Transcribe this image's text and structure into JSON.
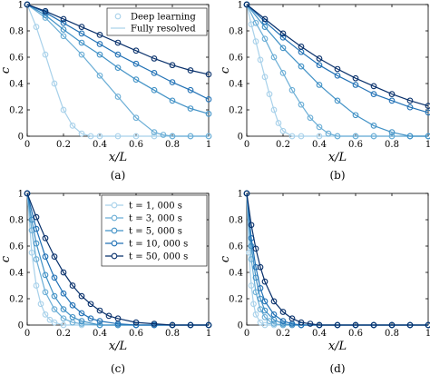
{
  "figure": {
    "panel_captions": [
      "(a)",
      "(b)",
      "(c)",
      "(d)"
    ]
  },
  "chart_data": [
    {
      "type": "line",
      "panel": "(a)",
      "xlabel": "x/L",
      "ylabel": "c",
      "xlim": [
        0,
        1
      ],
      "ylim": [
        0,
        1
      ],
      "xticks": [
        "0",
        "0.2",
        "0.4",
        "0.6",
        "0.8",
        "1"
      ],
      "yticks": [
        "0",
        "0.2",
        "0.4",
        "0.6",
        "0.8",
        "1"
      ],
      "grid": false,
      "legend": {
        "placement": "top-right",
        "entries": [
          "Deep learning",
          "Fully resolved"
        ]
      },
      "series": [
        {
          "color": "#a8d1ea",
          "marker": "circle",
          "x": [
            0,
            0.05,
            0.1,
            0.15,
            0.2,
            0.25,
            0.3,
            0.35,
            0.4,
            0.5,
            0.6,
            0.7,
            0.8,
            0.9,
            1.0
          ],
          "y": [
            1.0,
            0.83,
            0.62,
            0.4,
            0.2,
            0.08,
            0.02,
            0.0,
            0.0,
            0.0,
            0.0,
            0.0,
            0.0,
            0.0,
            0.0
          ]
        },
        {
          "color": "#6baed6",
          "marker": "circle",
          "x": [
            0,
            0.1,
            0.2,
            0.3,
            0.4,
            0.5,
            0.6,
            0.7,
            0.75,
            0.8,
            0.9,
            1.0
          ],
          "y": [
            1.0,
            0.9,
            0.76,
            0.62,
            0.46,
            0.3,
            0.14,
            0.03,
            0.01,
            0.0,
            0.0,
            0.0
          ]
        },
        {
          "color": "#4292c6",
          "marker": "circle",
          "x": [
            0,
            0.1,
            0.2,
            0.3,
            0.4,
            0.5,
            0.6,
            0.7,
            0.8,
            0.9,
            1.0
          ],
          "y": [
            1.0,
            0.92,
            0.81,
            0.71,
            0.62,
            0.52,
            0.43,
            0.35,
            0.27,
            0.21,
            0.17
          ]
        },
        {
          "color": "#2171b5",
          "marker": "circle",
          "x": [
            0,
            0.1,
            0.2,
            0.3,
            0.4,
            0.5,
            0.6,
            0.7,
            0.8,
            0.9,
            1.0
          ],
          "y": [
            1.0,
            0.94,
            0.86,
            0.78,
            0.7,
            0.62,
            0.55,
            0.48,
            0.41,
            0.35,
            0.28
          ]
        },
        {
          "color": "#08306b",
          "marker": "circle",
          "x": [
            0,
            0.1,
            0.2,
            0.3,
            0.4,
            0.5,
            0.6,
            0.7,
            0.8,
            0.9,
            1.0
          ],
          "y": [
            1.0,
            0.95,
            0.89,
            0.83,
            0.77,
            0.71,
            0.65,
            0.59,
            0.54,
            0.5,
            0.47
          ]
        }
      ]
    },
    {
      "type": "line",
      "panel": "(b)",
      "xlabel": "x/L",
      "ylabel": "c",
      "xlim": [
        0,
        1
      ],
      "ylim": [
        0,
        1
      ],
      "xticks": [
        "0",
        "0.2",
        "0.4",
        "0.6",
        "0.8",
        "1"
      ],
      "yticks": [
        "0",
        "0.2",
        "0.4",
        "0.6",
        "0.8",
        "1"
      ],
      "grid": false,
      "series": [
        {
          "color": "#a8d1ea",
          "marker": "circle",
          "x": [
            0,
            0.025,
            0.05,
            0.075,
            0.1,
            0.125,
            0.15,
            0.175,
            0.2,
            0.25,
            0.3,
            0.4,
            0.5,
            0.6,
            0.7,
            0.8,
            0.9,
            1.0
          ],
          "y": [
            1.0,
            0.85,
            0.72,
            0.58,
            0.45,
            0.32,
            0.2,
            0.1,
            0.04,
            0.0,
            0.0,
            0.0,
            0.0,
            0.0,
            0.0,
            0.0,
            0.0,
            0.0
          ]
        },
        {
          "color": "#6baed6",
          "marker": "circle",
          "x": [
            0,
            0.05,
            0.1,
            0.15,
            0.2,
            0.25,
            0.3,
            0.35,
            0.4,
            0.45,
            0.5,
            0.6,
            0.7,
            0.8,
            0.9,
            1.0
          ],
          "y": [
            1.0,
            0.86,
            0.74,
            0.6,
            0.48,
            0.35,
            0.24,
            0.14,
            0.07,
            0.02,
            0.0,
            0.0,
            0.0,
            0.0,
            0.0,
            0.0
          ]
        },
        {
          "color": "#4292c6",
          "marker": "circle",
          "x": [
            0,
            0.1,
            0.2,
            0.3,
            0.4,
            0.5,
            0.6,
            0.7,
            0.8,
            0.9,
            1.0
          ],
          "y": [
            1.0,
            0.83,
            0.67,
            0.53,
            0.39,
            0.27,
            0.16,
            0.08,
            0.03,
            0.0,
            0.0
          ]
        },
        {
          "color": "#2171b5",
          "marker": "circle",
          "x": [
            0,
            0.1,
            0.2,
            0.3,
            0.4,
            0.5,
            0.6,
            0.7,
            0.8,
            0.9,
            1.0
          ],
          "y": [
            1.0,
            0.87,
            0.75,
            0.64,
            0.54,
            0.46,
            0.39,
            0.32,
            0.27,
            0.22,
            0.18
          ]
        },
        {
          "color": "#08306b",
          "marker": "circle",
          "x": [
            0,
            0.1,
            0.2,
            0.3,
            0.4,
            0.5,
            0.6,
            0.7,
            0.8,
            0.9,
            1.0
          ],
          "y": [
            1.0,
            0.89,
            0.78,
            0.68,
            0.59,
            0.51,
            0.44,
            0.38,
            0.32,
            0.27,
            0.23
          ]
        }
      ]
    },
    {
      "type": "line",
      "panel": "(c)",
      "xlabel": "x/L",
      "ylabel": "c",
      "xlim": [
        0,
        1
      ],
      "ylim": [
        0,
        1
      ],
      "xticks": [
        "0",
        "0.2",
        "0.4",
        "0.6",
        "0.8",
        "1"
      ],
      "yticks": [
        "0",
        "0.2",
        "0.4",
        "0.6",
        "0.8",
        "1"
      ],
      "grid": false,
      "legend": {
        "placement": "top-right",
        "entries": [
          "t = 1, 000 s",
          "t = 3, 000 s",
          "t = 5, 000 s",
          "t = 10, 000 s",
          "t = 50, 000 s"
        ]
      },
      "series": [
        {
          "color": "#a8d1ea",
          "marker": "circle",
          "x": [
            0,
            0.025,
            0.05,
            0.075,
            0.1,
            0.125,
            0.15,
            0.2,
            0.3,
            0.4,
            0.5,
            0.6,
            0.7,
            0.8,
            0.9,
            1.0
          ],
          "y": [
            1.0,
            0.55,
            0.3,
            0.16,
            0.08,
            0.04,
            0.02,
            0.0,
            0.0,
            0.0,
            0.0,
            0.0,
            0.0,
            0.0,
            0.0,
            0.0
          ]
        },
        {
          "color": "#6baed6",
          "marker": "circle",
          "x": [
            0,
            0.025,
            0.05,
            0.1,
            0.15,
            0.2,
            0.25,
            0.3,
            0.4,
            0.5,
            0.6,
            0.7,
            0.8,
            0.9,
            1.0
          ],
          "y": [
            1.0,
            0.72,
            0.5,
            0.25,
            0.12,
            0.05,
            0.02,
            0.01,
            0.0,
            0.0,
            0.0,
            0.0,
            0.0,
            0.0,
            0.0
          ]
        },
        {
          "color": "#4292c6",
          "marker": "circle",
          "x": [
            0,
            0.025,
            0.05,
            0.1,
            0.15,
            0.2,
            0.25,
            0.3,
            0.4,
            0.5,
            0.6,
            0.7,
            0.8,
            0.9,
            1.0
          ],
          "y": [
            1.0,
            0.8,
            0.62,
            0.38,
            0.22,
            0.12,
            0.06,
            0.03,
            0.0,
            0.0,
            0.0,
            0.0,
            0.0,
            0.0,
            0.0
          ]
        },
        {
          "color": "#2171b5",
          "marker": "circle",
          "x": [
            0,
            0.05,
            0.1,
            0.15,
            0.2,
            0.25,
            0.3,
            0.35,
            0.4,
            0.5,
            0.6,
            0.7,
            0.8,
            0.9,
            1.0
          ],
          "y": [
            1.0,
            0.73,
            0.52,
            0.36,
            0.24,
            0.15,
            0.09,
            0.05,
            0.03,
            0.01,
            0.0,
            0.0,
            0.0,
            0.0,
            0.0
          ]
        },
        {
          "color": "#08306b",
          "marker": "circle",
          "x": [
            0,
            0.05,
            0.1,
            0.15,
            0.2,
            0.25,
            0.3,
            0.35,
            0.4,
            0.45,
            0.5,
            0.6,
            0.7,
            0.8,
            0.9,
            1.0
          ],
          "y": [
            1.0,
            0.82,
            0.66,
            0.52,
            0.4,
            0.3,
            0.22,
            0.16,
            0.11,
            0.07,
            0.05,
            0.02,
            0.01,
            0.0,
            0.0,
            0.0
          ]
        }
      ]
    },
    {
      "type": "line",
      "panel": "(d)",
      "xlabel": "x/L",
      "ylabel": "c",
      "xlim": [
        0,
        1
      ],
      "ylim": [
        0,
        1
      ],
      "xticks": [
        "0",
        "0.2",
        "0.4",
        "0.6",
        "0.8",
        "1"
      ],
      "yticks": [
        "0",
        "0.2",
        "0.4",
        "0.6",
        "0.8",
        "1"
      ],
      "grid": false,
      "series": [
        {
          "color": "#a8d1ea",
          "marker": "circle",
          "x": [
            0,
            0.0125,
            0.025,
            0.0375,
            0.05,
            0.075,
            0.1,
            0.15,
            0.2,
            0.3,
            0.4,
            0.5,
            0.6,
            0.7,
            0.8,
            0.9,
            1.0
          ],
          "y": [
            1.0,
            0.55,
            0.3,
            0.16,
            0.08,
            0.02,
            0.0,
            0.0,
            0.0,
            0.0,
            0.0,
            0.0,
            0.0,
            0.0,
            0.0,
            0.0,
            0.0
          ]
        },
        {
          "color": "#6baed6",
          "marker": "circle",
          "x": [
            0,
            0.025,
            0.05,
            0.075,
            0.1,
            0.125,
            0.15,
            0.2,
            0.3,
            0.4,
            0.5,
            0.6,
            0.7,
            0.8,
            0.9,
            1.0
          ],
          "y": [
            1.0,
            0.5,
            0.25,
            0.12,
            0.06,
            0.03,
            0.01,
            0.0,
            0.0,
            0.0,
            0.0,
            0.0,
            0.0,
            0.0,
            0.0,
            0.0
          ]
        },
        {
          "color": "#4292c6",
          "marker": "circle",
          "x": [
            0,
            0.025,
            0.05,
            0.075,
            0.1,
            0.15,
            0.2,
            0.25,
            0.3,
            0.4,
            0.5,
            0.6,
            0.7,
            0.8,
            0.9,
            1.0
          ],
          "y": [
            1.0,
            0.6,
            0.36,
            0.2,
            0.11,
            0.04,
            0.01,
            0.0,
            0.0,
            0.0,
            0.0,
            0.0,
            0.0,
            0.0,
            0.0,
            0.0
          ]
        },
        {
          "color": "#2171b5",
          "marker": "circle",
          "x": [
            0,
            0.025,
            0.05,
            0.075,
            0.1,
            0.15,
            0.2,
            0.25,
            0.3,
            0.4,
            0.5,
            0.6,
            0.7,
            0.8,
            0.9,
            1.0
          ],
          "y": [
            1.0,
            0.66,
            0.44,
            0.28,
            0.18,
            0.08,
            0.03,
            0.01,
            0.0,
            0.0,
            0.0,
            0.0,
            0.0,
            0.0,
            0.0,
            0.0
          ]
        },
        {
          "color": "#08306b",
          "marker": "circle",
          "x": [
            0,
            0.025,
            0.05,
            0.075,
            0.1,
            0.15,
            0.2,
            0.25,
            0.3,
            0.35,
            0.4,
            0.5,
            0.6,
            0.7,
            0.8,
            0.9,
            1.0
          ],
          "y": [
            1.0,
            0.76,
            0.58,
            0.44,
            0.33,
            0.18,
            0.1,
            0.05,
            0.02,
            0.01,
            0.0,
            0.0,
            0.0,
            0.0,
            0.0,
            0.0,
            0.0
          ]
        }
      ]
    }
  ]
}
